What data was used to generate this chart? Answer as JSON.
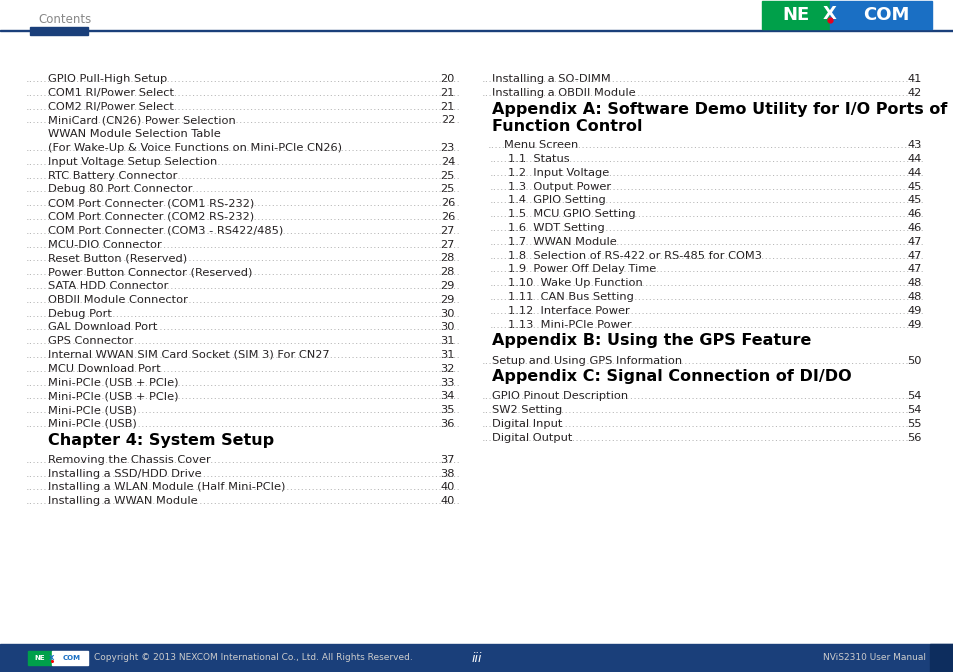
{
  "page_bg": "#ffffff",
  "header_text": "Contents",
  "header_color": "#888888",
  "divider_color": "#1a3f7a",
  "accent_color": "#1a3f7a",
  "left_entries": [
    {
      "label": "GPIO Pull-High Setup",
      "page": "20",
      "heading": false,
      "indent": 0
    },
    {
      "label": "COM1 RI/Power Select",
      "page": "21",
      "heading": false,
      "indent": 0
    },
    {
      "label": "COM2 RI/Power Select",
      "page": "21",
      "heading": false,
      "indent": 0
    },
    {
      "label": "MiniCard (CN26) Power Selection",
      "page": "22",
      "heading": false,
      "indent": 0
    },
    {
      "label": "WWAN Module Selection Table",
      "page": "",
      "heading": false,
      "indent": 0
    },
    {
      "label": "(For Wake-Up & Voice Functions on Mini-PCIe CN26)",
      "page": "23",
      "heading": false,
      "indent": 0
    },
    {
      "label": "Input Voltage Setup Selection",
      "page": "24",
      "heading": false,
      "indent": 0
    },
    {
      "label": "RTC Battery Connector",
      "page": "25",
      "heading": false,
      "indent": 0
    },
    {
      "label": "Debug 80 Port Connector",
      "page": "25",
      "heading": false,
      "indent": 0
    },
    {
      "label": "COM Port Connecter (COM1 RS-232)",
      "page": "26",
      "heading": false,
      "indent": 0
    },
    {
      "label": "COM Port Connecter (COM2 RS-232)",
      "page": "26",
      "heading": false,
      "indent": 0
    },
    {
      "label": "COM Port Connecter (COM3 - RS422/485)",
      "page": "27",
      "heading": false,
      "indent": 0
    },
    {
      "label": "MCU-DIO Connector",
      "page": "27",
      "heading": false,
      "indent": 0
    },
    {
      "label": "Reset Button (Reserved)",
      "page": "28",
      "heading": false,
      "indent": 0
    },
    {
      "label": "Power Button Connector (Reserved)",
      "page": "28",
      "heading": false,
      "indent": 0
    },
    {
      "label": "SATA HDD Connector",
      "page": "29",
      "heading": false,
      "indent": 0
    },
    {
      "label": "OBDII Module Connector",
      "page": "29",
      "heading": false,
      "indent": 0
    },
    {
      "label": "Debug Port",
      "page": "30",
      "heading": false,
      "indent": 0
    },
    {
      "label": "GAL Download Port",
      "page": "30",
      "heading": false,
      "indent": 0
    },
    {
      "label": "GPS Connector",
      "page": "31",
      "heading": false,
      "indent": 0
    },
    {
      "label": "Internal WWAN SIM Card Socket (SIM 3) For CN27",
      "page": "31",
      "heading": false,
      "indent": 0
    },
    {
      "label": "MCU Download Port",
      "page": "32",
      "heading": false,
      "indent": 0
    },
    {
      "label": "Mini-PCIe (USB + PCIe)",
      "page": "33",
      "heading": false,
      "indent": 0
    },
    {
      "label": "Mini-PCIe (USB + PCIe)",
      "page": "34",
      "heading": false,
      "indent": 0
    },
    {
      "label": "Mini-PCIe (USB)",
      "page": "35",
      "heading": false,
      "indent": 0
    },
    {
      "label": "Mini-PCIe (USB)",
      "page": "36",
      "heading": false,
      "indent": 0
    },
    {
      "label": "Chapter 4: System Setup",
      "page": "",
      "heading": true,
      "indent": 0
    },
    {
      "label": "Removing the Chassis Cover",
      "page": "37",
      "heading": false,
      "indent": 0
    },
    {
      "label": "Installing a SSD/HDD Drive",
      "page": "38",
      "heading": false,
      "indent": 0
    },
    {
      "label": "Installing a WLAN Module (Half Mini-PCIe)",
      "page": "40",
      "heading": false,
      "indent": 0
    },
    {
      "label": "Installing a WWAN Module",
      "page": "40",
      "heading": false,
      "indent": 0
    }
  ],
  "right_entries": [
    {
      "label": "Installing a SO-DIMM",
      "page": "41",
      "heading": false,
      "indent": 0
    },
    {
      "label": "Installing a OBDII Module",
      "page": "42",
      "heading": false,
      "indent": 0
    },
    {
      "label": "Appendix A: Software Demo Utility for I/O Ports of\nFunction Control",
      "page": "",
      "heading": true,
      "indent": 0
    },
    {
      "label": "Menu Screen",
      "page": "43",
      "heading": false,
      "indent": 12
    },
    {
      "label": "1.1  Status",
      "page": "44",
      "heading": false,
      "indent": 16
    },
    {
      "label": "1.2  Input Voltage",
      "page": "44",
      "heading": false,
      "indent": 16
    },
    {
      "label": "1.3  Output Power",
      "page": "45",
      "heading": false,
      "indent": 16
    },
    {
      "label": "1.4  GPIO Setting",
      "page": "45",
      "heading": false,
      "indent": 16
    },
    {
      "label": "1.5  MCU GPIO Setting",
      "page": "46",
      "heading": false,
      "indent": 16
    },
    {
      "label": "1.6  WDT Setting",
      "page": "46",
      "heading": false,
      "indent": 16
    },
    {
      "label": "1.7  WWAN Module",
      "page": "47",
      "heading": false,
      "indent": 16
    },
    {
      "label": "1.8  Selection of RS-422 or RS-485 for COM3",
      "page": "47",
      "heading": false,
      "indent": 16
    },
    {
      "label": "1.9  Power Off Delay Time",
      "page": "47",
      "heading": false,
      "indent": 16
    },
    {
      "label": "1.10  Wake Up Function",
      "page": "48",
      "heading": false,
      "indent": 16
    },
    {
      "label": "1.11  CAN Bus Setting",
      "page": "48",
      "heading": false,
      "indent": 16
    },
    {
      "label": "1.12  Interface Power",
      "page": "49",
      "heading": false,
      "indent": 16
    },
    {
      "label": "1.13  Mini-PCIe Power",
      "page": "49",
      "heading": false,
      "indent": 16
    },
    {
      "label": "Appendix B: Using the GPS Feature",
      "page": "",
      "heading": true,
      "indent": 0
    },
    {
      "label": "Setup and Using GPS Information",
      "page": "50",
      "heading": false,
      "indent": 0
    },
    {
      "label": "Appendix C: Signal Connection of DI/DO",
      "page": "",
      "heading": true,
      "indent": 0
    },
    {
      "label": "GPIO Pinout Description",
      "page": "54",
      "heading": false,
      "indent": 0
    },
    {
      "label": "SW2 Setting",
      "page": "54",
      "heading": false,
      "indent": 0
    },
    {
      "label": "Digital Input",
      "page": "55",
      "heading": false,
      "indent": 0
    },
    {
      "label": "Digital Output",
      "page": "56",
      "heading": false,
      "indent": 0
    }
  ],
  "footer_bg": "#1a3f7a",
  "footer_text": "Copyright © 2013 NEXCOM International Co., Ltd. All Rights Reserved.",
  "footer_page": "iii",
  "footer_manual": "NViS2310 User Manual",
  "nexcom_green": "#00a04a",
  "nexcom_blue": "#1a6fc4",
  "text_color": "#231f20",
  "dot_color": "#999999"
}
